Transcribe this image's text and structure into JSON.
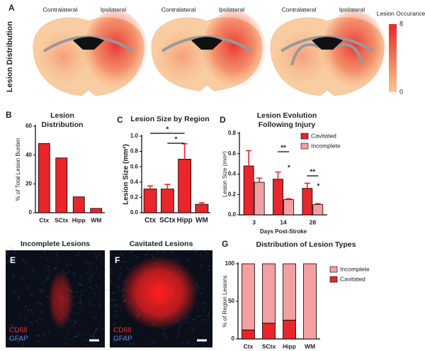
{
  "panel_labels": [
    "A",
    "B",
    "C",
    "D",
    "E",
    "F",
    "G"
  ],
  "brain_map": {
    "title": "Lesion Distribution",
    "side_labels": [
      [
        "Contralateral",
        "Ipsilateral"
      ],
      [
        "Contralateral",
        "Ipsilateral"
      ],
      [
        "Contralateral",
        "Ipsilateral"
      ]
    ],
    "colorbar": {
      "label": "Lesion Occurance",
      "ticks": [
        0,
        8
      ],
      "lim": [
        0,
        8
      ],
      "colors": [
        "#f9c896",
        "#e8262b"
      ]
    }
  },
  "images": [
    {
      "title": "Incomplete Lesions",
      "stains": [
        "CD68",
        "GFAP"
      ]
    },
    {
      "title": "Cavitated Lesions",
      "stains": [
        "CD68",
        "GFAP"
      ]
    }
  ],
  "chart_data": [
    {
      "type": "bar",
      "title": [
        "Lesion",
        "Distribution"
      ],
      "ylabel": "% of Total Lesion Burden",
      "categories": [
        "Ctx",
        "SCtx",
        "Hipp",
        "WM"
      ],
      "values": [
        48,
        38,
        11,
        3
      ],
      "color": "#e8262b",
      "ylim": [
        0,
        60
      ],
      "yticks": [
        0,
        20,
        40,
        60
      ]
    },
    {
      "type": "bar",
      "title": [
        "Lesion Size by Region"
      ],
      "ylabel": "Lesion Size (mm²)",
      "categories": [
        "Ctx",
        "SCtx",
        "Hipp",
        "WM"
      ],
      "values": [
        0.31,
        0.31,
        0.7,
        0.11
      ],
      "errors": [
        0.04,
        0.06,
        0.2,
        0.02
      ],
      "color": "#e8262b",
      "ylim": [
        0,
        1.0
      ],
      "yticks": [
        {
          "value": 0,
          "label": "0.0"
        },
        0.2,
        0.4,
        0.6,
        0.8,
        {
          "value": 1.0,
          "label": "1.0"
        }
      ],
      "annotations": [
        "*",
        "*"
      ]
    },
    {
      "type": "grouped_bar",
      "title": [
        "Lesion Evolution",
        "Following Injury"
      ],
      "ylabel": "Lesion Size (mm²)",
      "xlabel": "Days Post-Stroke",
      "categories": [
        "3",
        "14",
        "28"
      ],
      "series": [
        {
          "name": "Cavitated",
          "color": "#e8262b",
          "values": [
            0.48,
            0.35,
            0.26
          ],
          "errors": [
            0.15,
            0.07,
            0.05
          ]
        },
        {
          "name": "Incomplete",
          "color": "#f2a0a2",
          "values": [
            0.32,
            0.15,
            0.1
          ],
          "errors": [
            0.04,
            0.01,
            0.01
          ]
        }
      ],
      "ylim": [
        0,
        0.8
      ],
      "yticks": [
        {
          "value": 0,
          "label": "0.0"
        },
        0.2,
        0.4,
        0.6,
        0.8
      ],
      "annotations": [
        "**",
        "*",
        "**",
        "*"
      ]
    },
    {
      "type": "stacked_bar",
      "title": [
        "Distribution of Lesion Types"
      ],
      "ylabel": "% of Region Lesions",
      "categories": [
        "Ctx",
        "SCtx",
        "Hipp",
        "WM"
      ],
      "series": [
        {
          "name": "Cavitated",
          "color": "#e8262b",
          "values": [
            12,
            21,
            25,
            0
          ]
        },
        {
          "name": "Incomplete",
          "color": "#f2a0a2",
          "values": [
            88,
            79,
            75,
            100
          ]
        }
      ],
      "ylim": [
        0,
        100
      ],
      "yticks": [
        0,
        50,
        100
      ]
    }
  ]
}
